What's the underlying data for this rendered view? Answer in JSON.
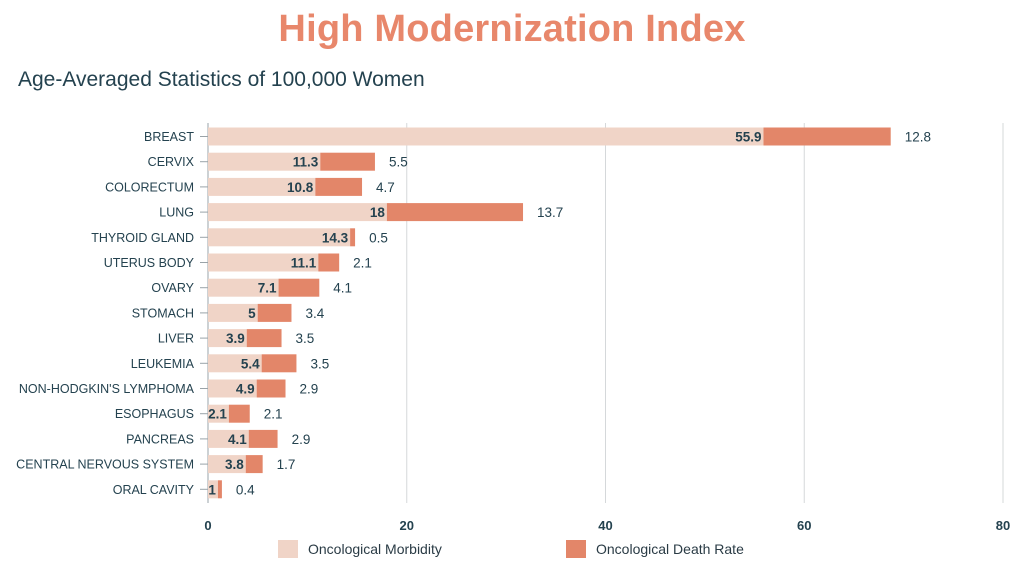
{
  "chart_data": {
    "type": "bar",
    "stacked": true,
    "orientation": "horizontal",
    "title": "High Modernization Index",
    "subtitle": "Age-Averaged Statistics of 100,000 Women",
    "categories": [
      "BREAST",
      "CERVIX",
      "COLORECTUM",
      "LUNG",
      "THYROID GLAND",
      "UTERUS BODY",
      "OVARY",
      "STOMACH",
      "LIVER",
      "LEUKEMIA",
      "NON-HODGKIN'S LYMPHOMA",
      "ESOPHAGUS",
      "PANCREAS",
      "CENTRAL NERVOUS SYSTEM",
      "ORAL CAVITY"
    ],
    "series": [
      {
        "name": "Oncological Morbidity",
        "values": [
          55.9,
          11.3,
          10.8,
          18,
          14.3,
          11.1,
          7.1,
          5,
          3.9,
          5.4,
          4.9,
          2.1,
          4.1,
          3.8,
          1
        ],
        "color": "#f0d4c7"
      },
      {
        "name": "Oncological Death Rate",
        "values": [
          12.8,
          5.5,
          4.7,
          13.7,
          0.5,
          2.1,
          4.1,
          3.4,
          3.5,
          3.5,
          2.9,
          2.1,
          2.9,
          1.7,
          0.4
        ],
        "color": "#e38669"
      }
    ],
    "xlim": [
      0,
      80
    ],
    "xticks": [
      0,
      20,
      40,
      60,
      80
    ],
    "grid": true,
    "legend": "bottom"
  }
}
